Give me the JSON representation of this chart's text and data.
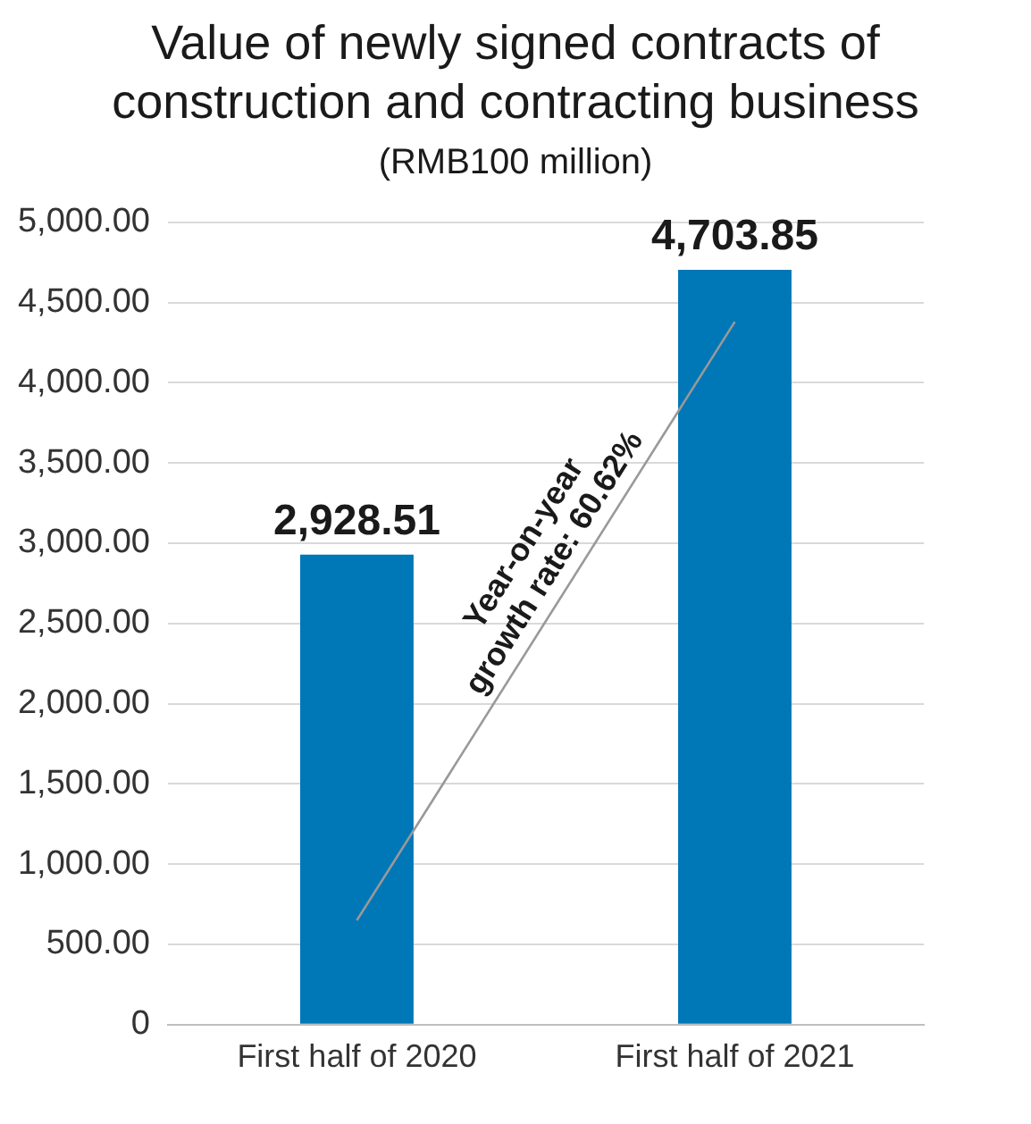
{
  "chart_data": {
    "type": "bar",
    "title": "Value of newly signed contracts of construction and contracting business",
    "subtitle": "(RMB100 million)",
    "categories": [
      "First half of 2020",
      "First half of 2021"
    ],
    "series": [
      {
        "color": "#0077b6",
        "values": [
          2928.51,
          4703.85
        ],
        "value_labels": [
          "2,928.51",
          "4,703.85"
        ]
      },
      {
        "type": "line",
        "color": "#999999",
        "values": [
          650,
          4380
        ]
      }
    ],
    "ylim": [
      0,
      5000
    ],
    "yticks": [
      0,
      {
        "value": 500,
        "label": "500.00"
      },
      {
        "value": 1000,
        "label": "1,000.00"
      },
      {
        "value": 1500,
        "label": "1,500.00"
      },
      {
        "value": 2000,
        "label": "2,000.00"
      },
      {
        "value": 2500,
        "label": "2,500.00"
      },
      {
        "value": 3000,
        "label": "3,000.00"
      },
      {
        "value": 3500,
        "label": "3,500.00"
      },
      {
        "value": 4000,
        "label": "4,000.00"
      },
      {
        "value": 4500,
        "label": "4,500.00"
      },
      {
        "value": 5000,
        "label": "5,000.00"
      }
    ],
    "grid": "y",
    "legend": false,
    "marker": "none",
    "annotations": [
      "Year-on-year growth rate: 60.62%"
    ]
  }
}
